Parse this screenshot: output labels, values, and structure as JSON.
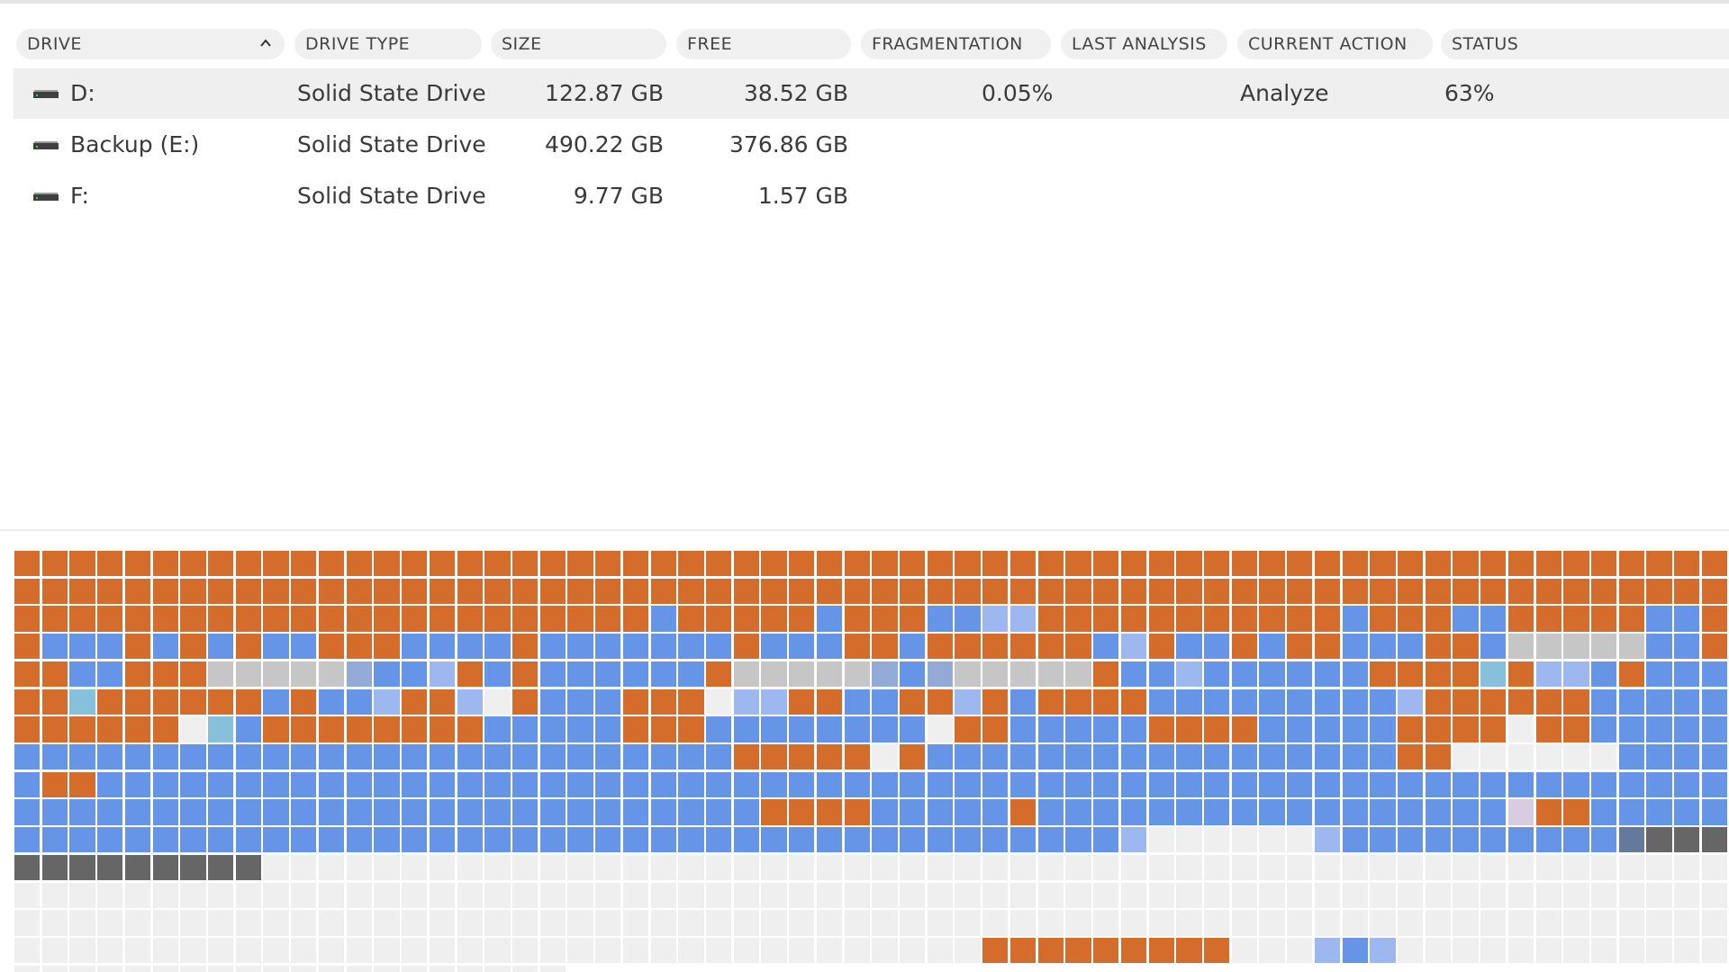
{
  "columns": [
    {
      "label": "DRIVE",
      "sort": "ascending"
    },
    {
      "label": "DRIVE TYPE"
    },
    {
      "label": "SIZE"
    },
    {
      "label": "FREE"
    },
    {
      "label": "FRAGMENTATION"
    },
    {
      "label": "LAST ANALYSIS"
    },
    {
      "label": "CURRENT ACTION"
    },
    {
      "label": "STATUS"
    }
  ],
  "drives": [
    {
      "name": "D:",
      "type": "Solid State Drive",
      "size": "122.87 GB",
      "free": "38.52 GB",
      "fragmentation": "0.05%",
      "last_analysis": "",
      "current_action": "Analyze",
      "status": "63%",
      "selected": true
    },
    {
      "name": "Backup (E:)",
      "type": "Solid State Drive",
      "size": "490.22 GB",
      "free": "376.86 GB",
      "fragmentation": "",
      "last_analysis": "",
      "current_action": "",
      "status": "",
      "selected": false
    },
    {
      "name": "F:",
      "type": "Solid State Drive",
      "size": "9.77 GB",
      "free": "1.57 GB",
      "fragmentation": "",
      "last_analysis": "",
      "current_action": "",
      "status": "",
      "selected": false
    }
  ],
  "disk_map": {
    "colors": {
      "O": "#d46d2b",
      "B": "#6695e8",
      "L": "#9db8ee",
      "H": "#94aad6",
      "G": "#c5c6c5",
      "W": "#efeff0",
      "C": "#86c0da",
      "P": "#d8cce0",
      "K": "#647a9c",
      "D": "#666666"
    },
    "rows": [
      "OOOOOOOOOOOOOOOOOOOOOOOOOOOOOOOOOOOOOOOOOOOOOOOOOOOOOOOOOOOOOO",
      "OOOOOOOOOOOOOOOOOOOOOOOOOOOOOOOOOOOOOOOOOOOOOOOOOOOOOOOOOOOOOO",
      "OOOOOOOOOOOOOOOOOOOOOOOBOOOOOBOOOBBLLOOOOOOOOOOOBOOOBBOOOOOBBO",
      "OBBBOBOBOBBOOOBBBBOBBBBBBBOBBBOOBOOOOOOBLOBBOBOOBBBOOBGGGGGBBO",
      "OOBBOOOGGGGGHBBLOBOBBBBBBOGGGGGHBHGGGGGOBBLBBBBBBOOOOCOLLBOBBB",
      "OOCOOOOOOBOBBLOOLWOBBBOOOWLLOOBBOOLOBOOOOBBBBBBBBBLOOOOOOBBBBB",
      "OOOOOOWCBOOOOOOOOBBBBBOOOBBBBBBBBWOOBBBBBOOOOBBBBBOOOOWOOBBBBB",
      "BBBBBBBBBBBBBBBBBBBBBBBBBBOOOOOWOBBBBBBBBBBBBBBBBBOOWWWWWWBBBBB",
      "BOOBBBBBBBBBBBBBBBBBBBBBBBBBBBBBBBBBBBBBBBBBBBBBBBBBBBBBBBBBBB",
      "BBBBBBBBBBBBBBBBBBBBBBBBBBBOOOOBBBBBOBBBBBBBBBBBBBBBBBPOOBBBBB",
      "BBBBBBBBBBBBBBBBBBBBBBBBBBBBBBBBBBBBBBBBLWWWWWWLBBBBBBBBBBKDDD",
      "DDDDDDDDDWWWWWWWWWWWWWWWWWWWWWWWWWWWWWWWWWWWWWWWWWWWWWWWWWWWWW",
      "WWWWWWWWWWWWWWWWWWWWWWWWWWWWWWWWWWWWWWWWWWWWWWWWWWWWWWWWWWWWWW",
      "WWWWWWWWWWWWWWWWWWWWWWWWWWWWWWWWWWWWWWWWWWWWWWWWWWWWWWWWWWWWWW",
      "WWWWWWWWWWWWWWWWWWWWWWWWWWWWWWWWWWWOOOOOOOOOWWWLBLWWWWWWWWWWWW",
      "WWWWWWWWWWWWWWWWWWWW"
    ]
  }
}
